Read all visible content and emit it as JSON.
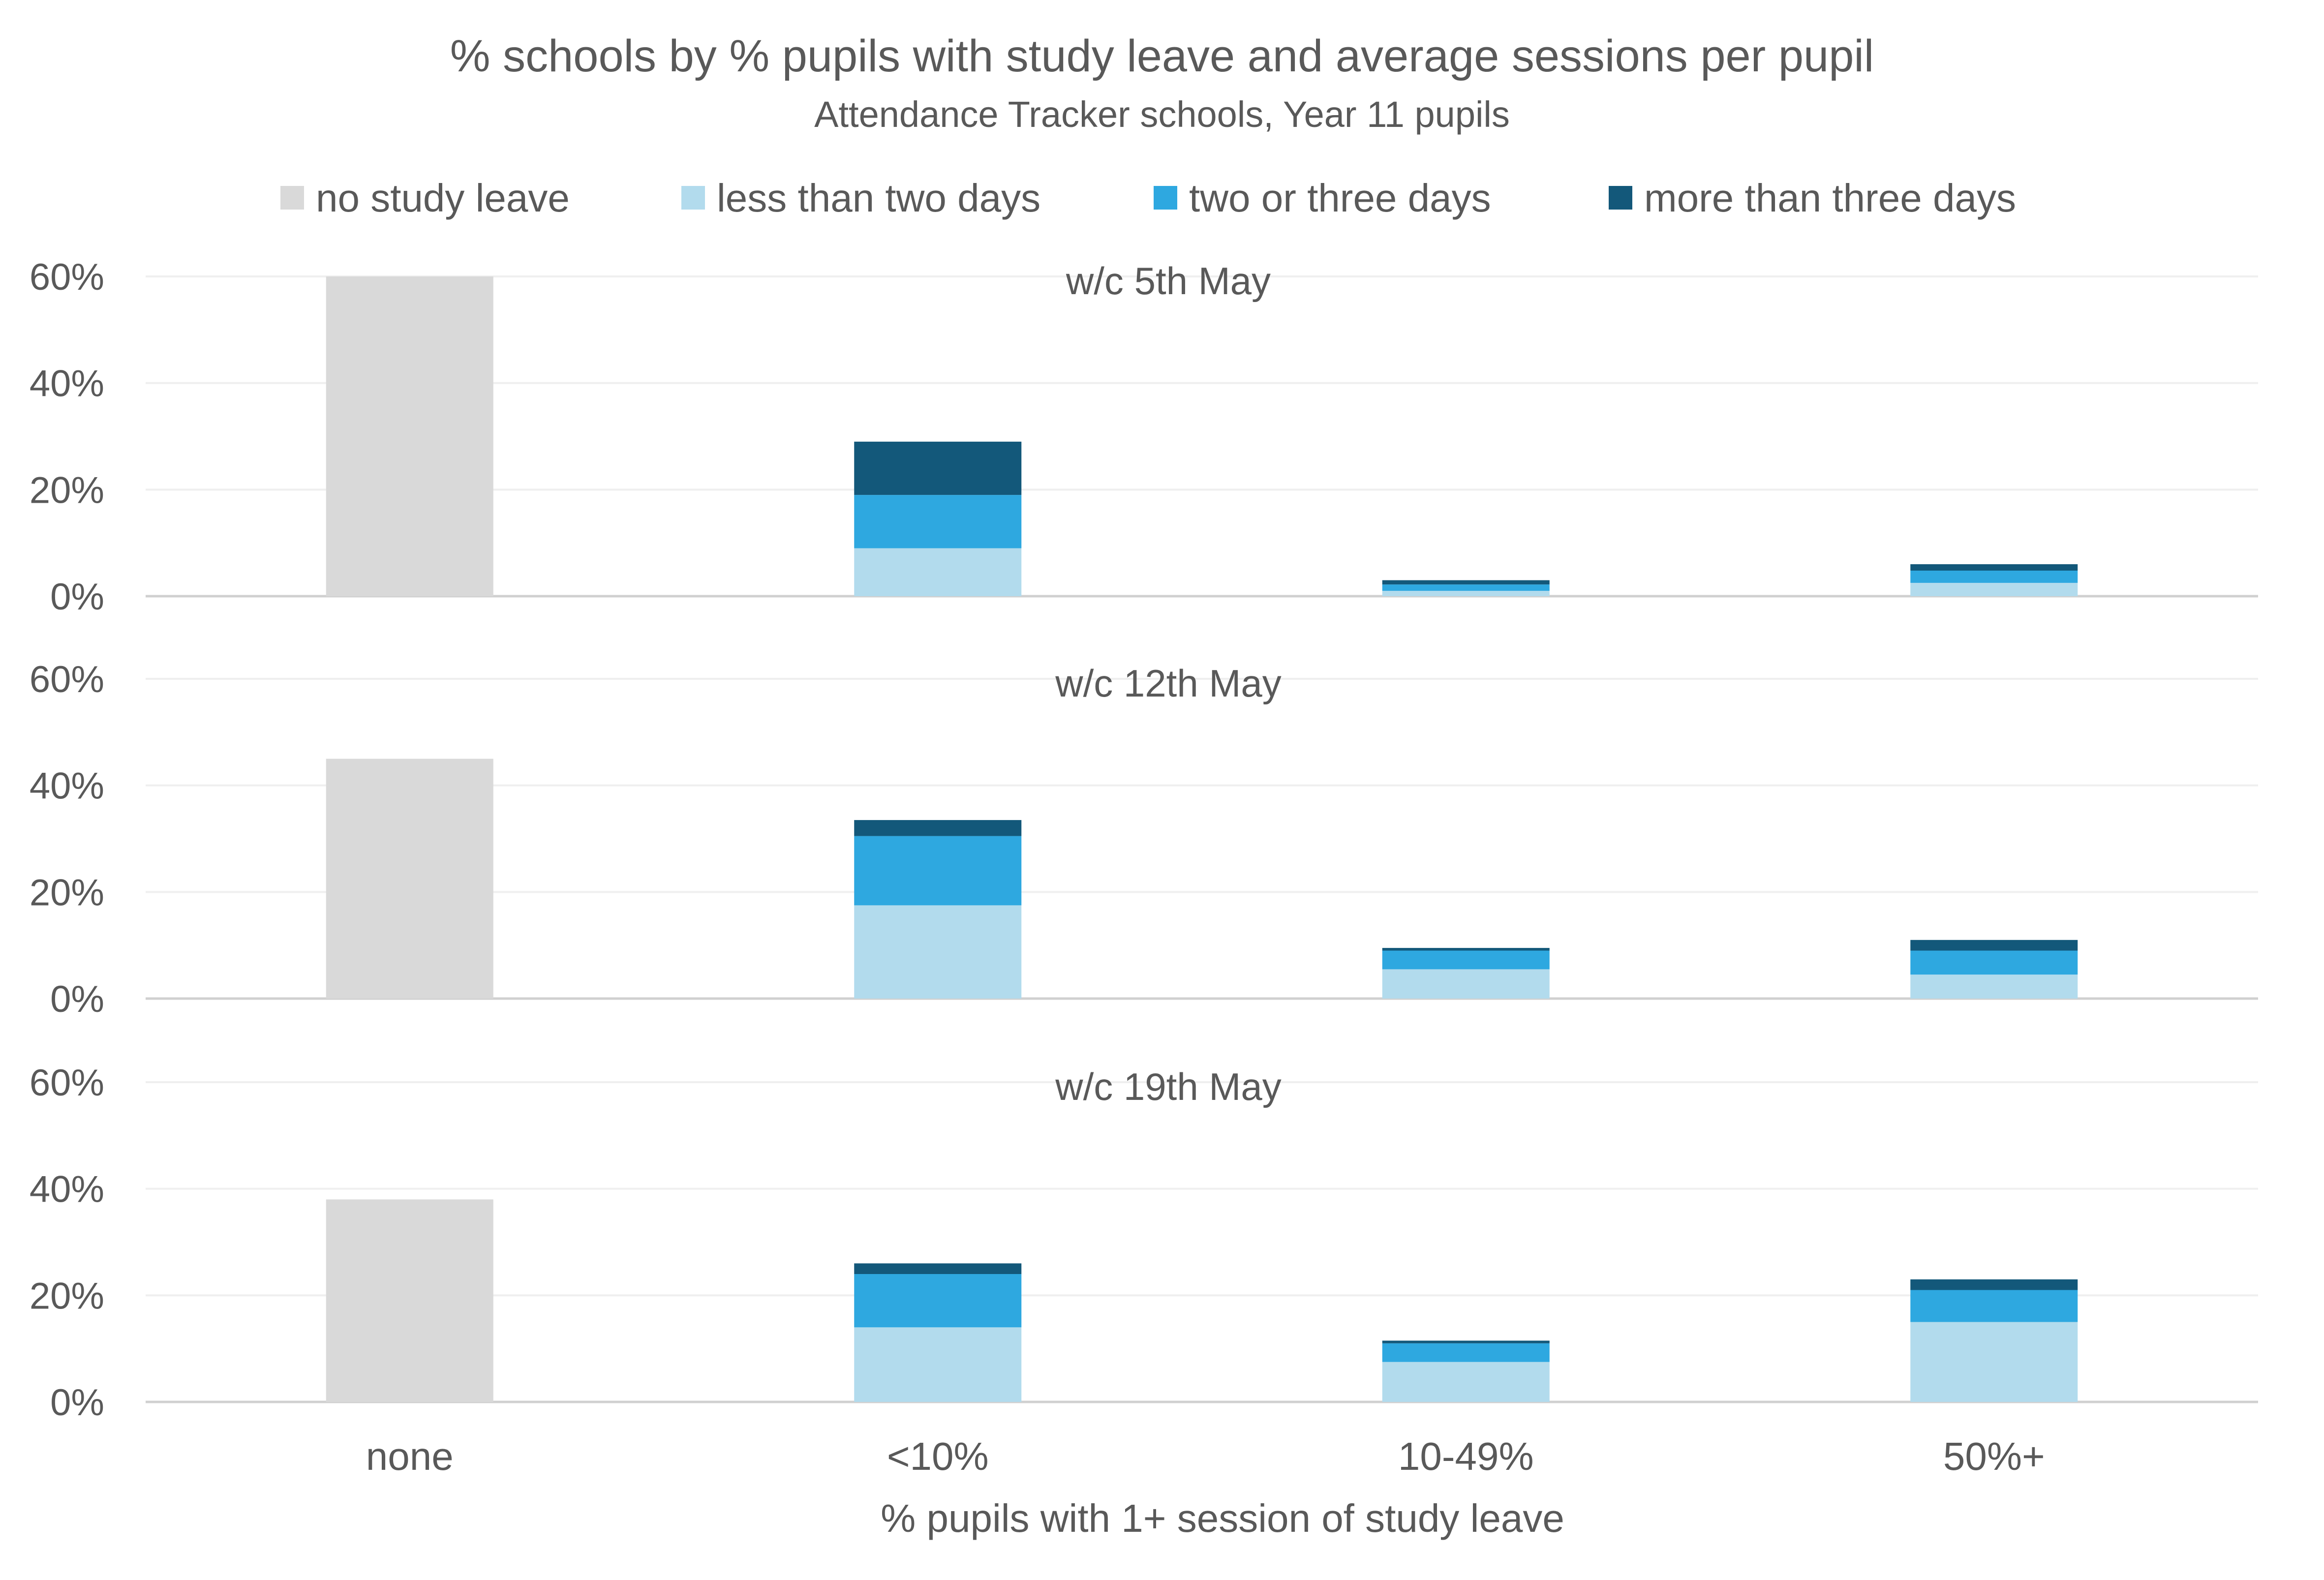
{
  "chart_data": {
    "type": "bar",
    "stacked": true,
    "title": "% schools by % pupils with study leave and average sessions per pupil",
    "subtitle": "Attendance Tracker schools, Year 11 pupils",
    "xlabel": "% pupils with 1+ session of study leave",
    "ylabel": "",
    "ylim": [
      0,
      60
    ],
    "yticks": [
      "0%",
      "20%",
      "40%",
      "60%"
    ],
    "ytick_values": [
      0,
      20,
      40,
      60
    ],
    "grid": true,
    "legend_position": "top",
    "categories": [
      "none",
      "<10%",
      "10-49%",
      "50%+"
    ],
    "legend": [
      {
        "name": "no study leave",
        "color": "#d9d9d9"
      },
      {
        "name": "less than two days",
        "color": "#b2dbed"
      },
      {
        "name": "two or three days",
        "color": "#2ea8e0"
      },
      {
        "name": "more than three days",
        "color": "#13587a"
      }
    ],
    "panels": [
      {
        "title": "w/c 5th May",
        "series": [
          {
            "name": "no study leave",
            "values": [
              60,
              0,
              0,
              0
            ]
          },
          {
            "name": "less than two days",
            "values": [
              0,
              9,
              1,
              2.5
            ]
          },
          {
            "name": "two or three days",
            "values": [
              0,
              10,
              1.2,
              2.3
            ]
          },
          {
            "name": "more than three days",
            "values": [
              0,
              10,
              0.8,
              1.2
            ]
          }
        ]
      },
      {
        "title": "w/c 12th May",
        "series": [
          {
            "name": "no study leave",
            "values": [
              45,
              0,
              0,
              0
            ]
          },
          {
            "name": "less than two days",
            "values": [
              0,
              17.5,
              5.5,
              4.5
            ]
          },
          {
            "name": "two or three days",
            "values": [
              0,
              13,
              3.5,
              4.5
            ]
          },
          {
            "name": "more than three days",
            "values": [
              0,
              3,
              0.5,
              2
            ]
          }
        ]
      },
      {
        "title": "w/c 19th May",
        "series": [
          {
            "name": "no study leave",
            "values": [
              38,
              0,
              0,
              0
            ]
          },
          {
            "name": "less than two days",
            "values": [
              0,
              14,
              7.5,
              15
            ]
          },
          {
            "name": "two or three days",
            "values": [
              0,
              10,
              3.5,
              6
            ]
          },
          {
            "name": "more than three days",
            "values": [
              0,
              2,
              0.5,
              2
            ]
          }
        ]
      }
    ]
  }
}
